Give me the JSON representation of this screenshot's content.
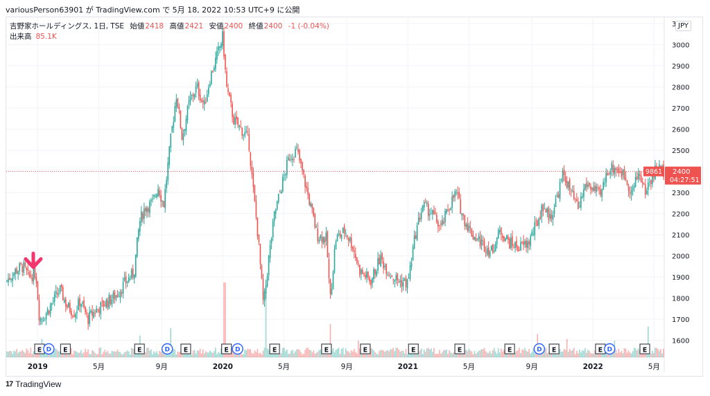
{
  "header": {
    "publish_line": "variousPerson63901 が TradingView.com で 5月 18, 2022 10:53 UTC+9 に公開"
  },
  "legend": {
    "symbol": "吉野家ホールディングス, 1日, TSE",
    "open_label": "始値",
    "open_value": "2418",
    "high_label": "高値",
    "high_value": "2421",
    "low_label": "安値",
    "low_value": "2400",
    "close_label": "終値",
    "close_value": "2400",
    "change": "-1 (-0.04%)",
    "volume_label": "出来高",
    "volume_value": "85.1K"
  },
  "currency": "JPY",
  "price_badge": {
    "volume": "9861",
    "price": "2400",
    "countdown": "04:27:51"
  },
  "footer": {
    "brand": "TradingView"
  },
  "colors": {
    "up": "#26a69a",
    "down": "#ef5350",
    "accent": "#f2366e",
    "grid": "#f0f3fa"
  },
  "markers": {
    "earnings_label": "E",
    "dividend_label": "D"
  },
  "chart_data": {
    "type": "candlestick",
    "title": "吉野家ホールディングス, 1日, TSE",
    "ylim": [
      1520,
      3130
    ],
    "y_ticks": [
      1600,
      1700,
      1800,
      1900,
      2000,
      2100,
      2200,
      2300,
      2400,
      2500,
      2600,
      2700,
      2800,
      2900,
      3000,
      3100
    ],
    "x_ticks": [
      {
        "label": "2019",
        "t": 2019.0,
        "bold": true
      },
      {
        "label": "5月",
        "t": 2019.33,
        "bold": false
      },
      {
        "label": "9月",
        "t": 2019.67,
        "bold": false
      },
      {
        "label": "2020",
        "t": 2020.0,
        "bold": true
      },
      {
        "label": "5月",
        "t": 2020.33,
        "bold": false
      },
      {
        "label": "9月",
        "t": 2020.67,
        "bold": false
      },
      {
        "label": "2021",
        "t": 2021.0,
        "bold": true
      },
      {
        "label": "5月",
        "t": 2021.33,
        "bold": false
      },
      {
        "label": "9月",
        "t": 2021.67,
        "bold": false
      },
      {
        "label": "2022",
        "t": 2022.0,
        "bold": true
      },
      {
        "label": "5月",
        "t": 2022.33,
        "bold": false
      }
    ],
    "t_range": [
      2018.83,
      2022.385
    ],
    "price_path": [
      [
        2018.83,
        1880
      ],
      [
        2018.88,
        1930
      ],
      [
        2018.92,
        1950
      ],
      [
        2018.95,
        1900
      ],
      [
        2018.99,
        1920
      ],
      [
        2019.01,
        1700
      ],
      [
        2019.04,
        1720
      ],
      [
        2019.08,
        1780
      ],
      [
        2019.12,
        1840
      ],
      [
        2019.16,
        1760
      ],
      [
        2019.2,
        1730
      ],
      [
        2019.23,
        1790
      ],
      [
        2019.27,
        1700
      ],
      [
        2019.31,
        1740
      ],
      [
        2019.37,
        1780
      ],
      [
        2019.42,
        1810
      ],
      [
        2019.47,
        1870
      ],
      [
        2019.52,
        1920
      ],
      [
        2019.55,
        2160
      ],
      [
        2019.58,
        2230
      ],
      [
        2019.62,
        2250
      ],
      [
        2019.65,
        2330
      ],
      [
        2019.68,
        2240
      ],
      [
        2019.72,
        2560
      ],
      [
        2019.75,
        2770
      ],
      [
        2019.78,
        2560
      ],
      [
        2019.82,
        2730
      ],
      [
        2019.86,
        2800
      ],
      [
        2019.9,
        2710
      ],
      [
        2019.93,
        2840
      ],
      [
        2019.97,
        2950
      ],
      [
        2020.0,
        3040
      ],
      [
        2020.02,
        2800
      ],
      [
        2020.06,
        2640
      ],
      [
        2020.1,
        2600
      ],
      [
        2020.14,
        2550
      ],
      [
        2020.16,
        2350
      ],
      [
        2020.19,
        2100
      ],
      [
        2020.22,
        1760
      ],
      [
        2020.25,
        2000
      ],
      [
        2020.28,
        2200
      ],
      [
        2020.32,
        2340
      ],
      [
        2020.36,
        2470
      ],
      [
        2020.4,
        2500
      ],
      [
        2020.44,
        2360
      ],
      [
        2020.47,
        2250
      ],
      [
        2020.51,
        2100
      ],
      [
        2020.56,
        2080
      ],
      [
        2020.58,
        1790
      ],
      [
        2020.61,
        2080
      ],
      [
        2020.66,
        2120
      ],
      [
        2020.7,
        2050
      ],
      [
        2020.74,
        1930
      ],
      [
        2020.8,
        1880
      ],
      [
        2020.85,
        1990
      ],
      [
        2020.9,
        1920
      ],
      [
        2020.95,
        1880
      ],
      [
        2021.0,
        1870
      ],
      [
        2021.04,
        2100
      ],
      [
        2021.08,
        2240
      ],
      [
        2021.13,
        2200
      ],
      [
        2021.18,
        2130
      ],
      [
        2021.22,
        2230
      ],
      [
        2021.26,
        2300
      ],
      [
        2021.3,
        2180
      ],
      [
        2021.35,
        2100
      ],
      [
        2021.4,
        2060
      ],
      [
        2021.45,
        2020
      ],
      [
        2021.5,
        2120
      ],
      [
        2021.55,
        2060
      ],
      [
        2021.6,
        2040
      ],
      [
        2021.65,
        2060
      ],
      [
        2021.7,
        2160
      ],
      [
        2021.73,
        2240
      ],
      [
        2021.77,
        2180
      ],
      [
        2021.8,
        2260
      ],
      [
        2021.84,
        2390
      ],
      [
        2021.88,
        2300
      ],
      [
        2021.92,
        2220
      ],
      [
        2021.96,
        2340
      ],
      [
        2022.0,
        2320
      ],
      [
        2022.04,
        2280
      ],
      [
        2022.08,
        2410
      ],
      [
        2022.12,
        2420
      ],
      [
        2022.17,
        2380
      ],
      [
        2022.21,
        2300
      ],
      [
        2022.25,
        2400
      ],
      [
        2022.28,
        2300
      ],
      [
        2022.31,
        2360
      ],
      [
        2022.345,
        2420
      ],
      [
        2022.385,
        2400
      ]
    ],
    "volume_spikes": [
      [
        2019.02,
        0.22
      ],
      [
        2019.55,
        0.26
      ],
      [
        2019.72,
        0.35
      ],
      [
        2020.01,
        0.9
      ],
      [
        2020.23,
        0.85
      ],
      [
        2020.58,
        0.4
      ],
      [
        2020.73,
        0.2
      ],
      [
        2021.7,
        0.28
      ],
      [
        2021.86,
        0.22
      ],
      [
        2022.12,
        0.2
      ],
      [
        2022.3,
        0.37
      ]
    ],
    "last_price": 2400,
    "events": [
      {
        "type": "E",
        "t": 2019.01
      },
      {
        "type": "D",
        "t": 2019.06
      },
      {
        "type": "E",
        "t": 2019.15
      },
      {
        "type": "E",
        "t": 2019.55
      },
      {
        "type": "D",
        "t": 2019.7
      },
      {
        "type": "E",
        "t": 2019.8
      },
      {
        "type": "E",
        "t": 2020.02
      },
      {
        "type": "D",
        "t": 2020.08
      },
      {
        "type": "E",
        "t": 2020.28
      },
      {
        "type": "E",
        "t": 2020.56
      },
      {
        "type": "E",
        "t": 2020.77
      },
      {
        "type": "E",
        "t": 2021.03
      },
      {
        "type": "E",
        "t": 2021.28
      },
      {
        "type": "E",
        "t": 2021.55
      },
      {
        "type": "D",
        "t": 2021.71
      },
      {
        "type": "E",
        "t": 2021.79
      },
      {
        "type": "E",
        "t": 2022.04
      },
      {
        "type": "D",
        "t": 2022.09
      },
      {
        "type": "E",
        "t": 2022.28
      }
    ]
  }
}
